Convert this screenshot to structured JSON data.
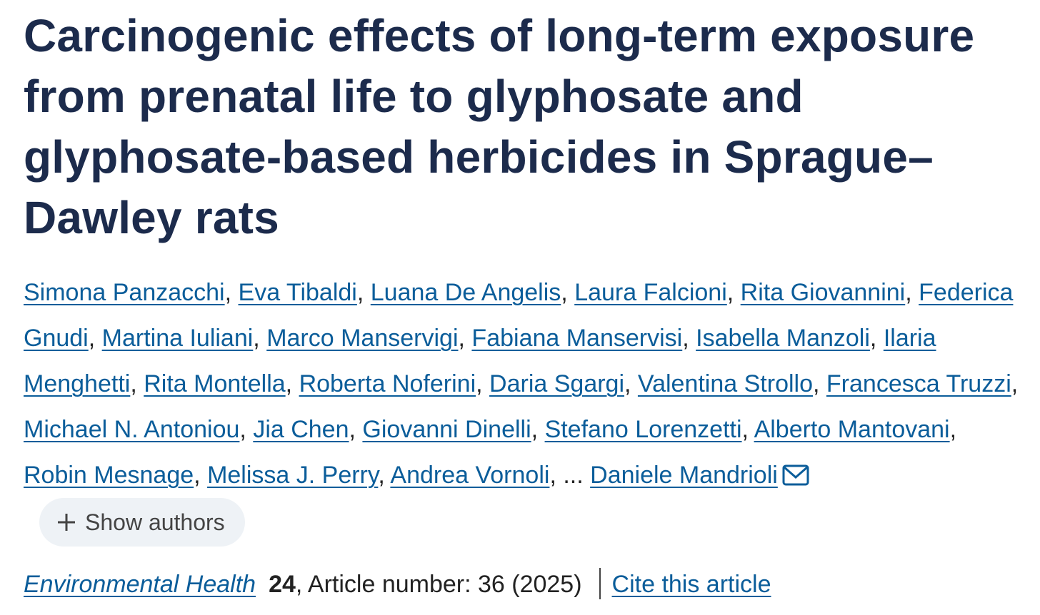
{
  "title": "Carcinogenic effects of long-term exposure from prenatal life to glyphosate and glyphosate-based herbicides in Sprague–Dawley rats",
  "authors": [
    "Simona Panzacchi",
    "Eva Tibaldi",
    "Luana De Angelis",
    "Laura Falcioni",
    "Rita Giovannini",
    "Federica Gnudi",
    "Martina Iuliani",
    "Marco Manservigi",
    "Fabiana Manservisi",
    "Isabella Manzoli",
    "Ilaria Menghetti",
    "Rita Montella",
    "Roberta Noferini",
    "Daria Sgargi",
    "Valentina Strollo",
    "Francesca Truzzi",
    "Michael N. Antoniou",
    "Jia Chen",
    "Giovanni Dinelli",
    "Stefano Lorenzetti",
    "Alberto Mantovani",
    "Robin Mesnage",
    "Melissa J. Perry",
    "Andrea Vornoli"
  ],
  "separator": ",",
  "ellipsis": "...",
  "last_author": "Daniele Mandrioli",
  "show_authors": "Show authors",
  "journal": "Environmental Health",
  "volume": "24",
  "details": ", Article number: 36 (2025)",
  "cite": "Cite this article"
}
